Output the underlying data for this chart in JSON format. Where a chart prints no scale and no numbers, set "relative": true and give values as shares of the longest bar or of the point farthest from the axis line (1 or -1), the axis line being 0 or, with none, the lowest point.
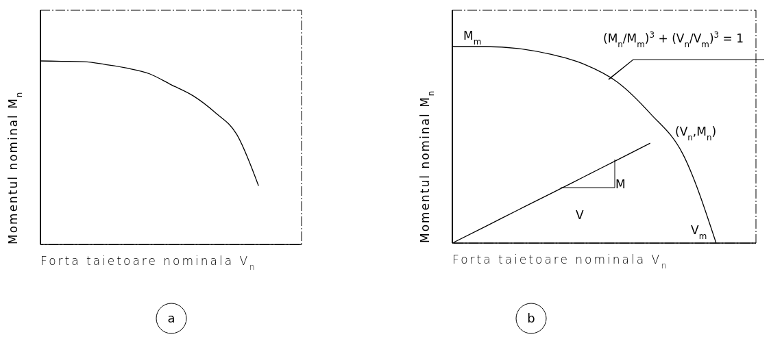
{
  "chart_data": [
    {
      "type": "line",
      "title": "a",
      "xlabel": "Forta taietoare nominala V$_{n}$",
      "ylabel": "Momentul nominal M$_{n}$",
      "relative": true,
      "categories": [
        null,
        null,
        null,
        null,
        null,
        null,
        null,
        null,
        null,
        null,
        null,
        null
      ],
      "series": [
        {
          "color": "#000000",
          "values": [
            1,
            0.998,
            0.996,
            0.98,
            0.96,
            0.93,
            0.87,
            0.81,
            0.72,
            0.6,
            0.32,
            null
          ]
        }
      ]
    },
    {
      "type": "line",
      "title": "b",
      "xlabel": "Forta taietoare nominala V$_{n}$",
      "ylabel": "Momentul nominal M$_{n}$",
      "relative": true,
      "categories": [
        null,
        null,
        null,
        null,
        null,
        null,
        null,
        null,
        null,
        null
      ],
      "series": [
        {
          "color": "#000000",
          "values": [
            1,
            1,
            0.99,
            0.96,
            0.91,
            0.82,
            0.66,
            0.45,
            0,
            null
          ]
        },
        {
          "color": "#000000",
          "values": [
            0,
            0.084,
            0.169,
            0.253,
            0.338,
            0.423,
            0.508,
            null,
            null,
            null
          ]
        }
      ],
      "annotations": [
        "M$_{m}$",
        "(M$_{n}$/M$_{m}$)$^{3}$ + (V$_{n}$/V$_{m}$)$^{3}$ = 1",
        "(V$_{n}$,M$_{n}$)",
        "M",
        "V",
        "V$_{m}$"
      ]
    }
  ]
}
